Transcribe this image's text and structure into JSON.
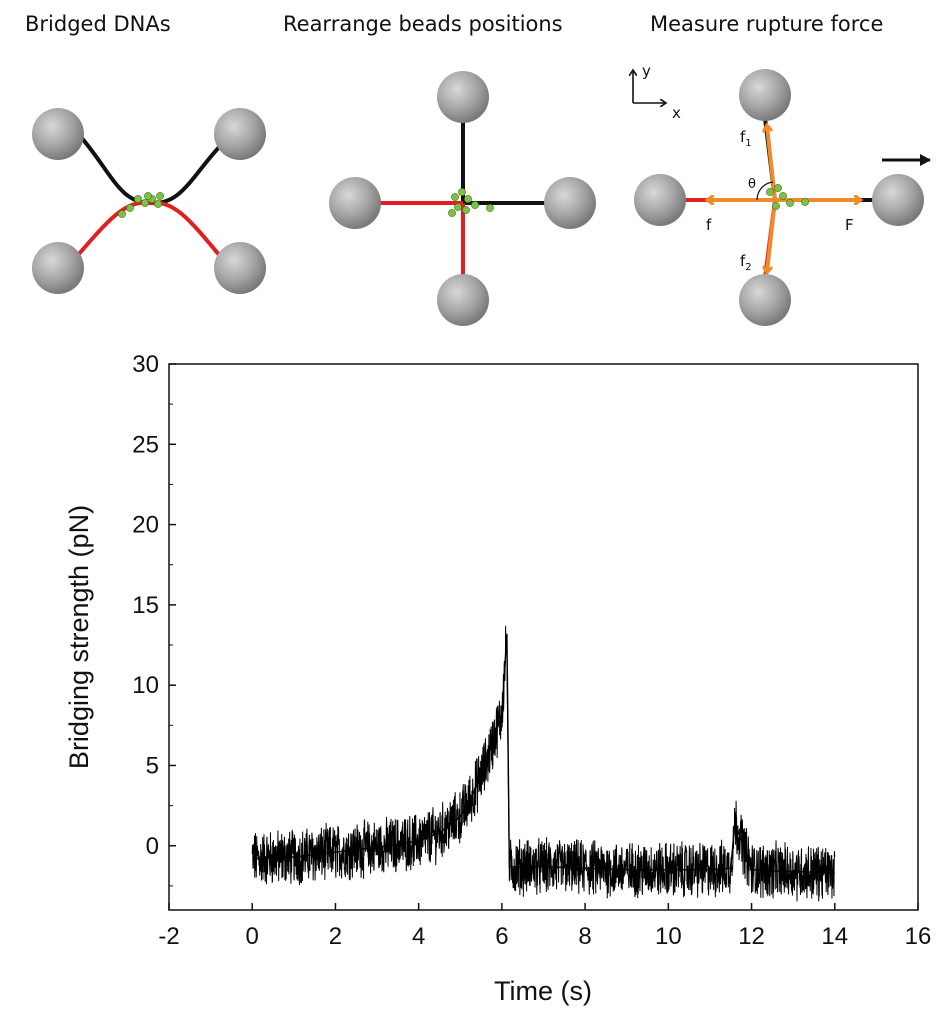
{
  "panels": {
    "bridged": {
      "title": "Bridged DNAs"
    },
    "rearrange": {
      "title": "Rearrange beads positions"
    },
    "measure": {
      "title": "Measure rupture force",
      "axis_y": "y",
      "axis_x": "x",
      "f1": "f",
      "f1_sub": "1",
      "f2": "f",
      "f2_sub": "2",
      "f": "f",
      "F": "F",
      "theta": "θ"
    }
  },
  "colors": {
    "bead": "#9a9a9a",
    "dna_black": "#111111",
    "dna_red": "#e02020",
    "protein": "#7cc242",
    "force_arrow": "#f08a2a",
    "trace": "#000000"
  },
  "chart_data": {
    "type": "line",
    "xlabel": "Time (s)",
    "ylabel": "Bridging strength (pN)",
    "xlim": [
      -2,
      16
    ],
    "ylim": [
      -4,
      30
    ],
    "xticks": [
      -2,
      0,
      2,
      4,
      6,
      8,
      10,
      12,
      14,
      16
    ],
    "yticks": [
      0,
      5,
      10,
      15,
      20,
      25,
      30
    ],
    "series": [
      {
        "x": [
          0,
          1,
          2,
          3,
          4,
          4.5,
          5,
          5.3,
          5.6,
          5.8,
          6.0,
          6.12,
          6.14,
          6.18,
          7,
          8,
          9,
          10,
          11,
          11.5,
          11.6,
          12,
          13,
          14
        ],
        "y": [
          -0.8,
          -0.7,
          -0.4,
          -0.1,
          0.3,
          0.8,
          1.8,
          3.2,
          5.0,
          6.6,
          8.2,
          13.2,
          8.6,
          -1.3,
          -1.3,
          -1.4,
          -1.5,
          -1.5,
          -1.5,
          -1.4,
          1.5,
          -1.5,
          -1.6,
          -1.7
        ],
        "noise_band_pN": 3.0
      }
    ]
  }
}
